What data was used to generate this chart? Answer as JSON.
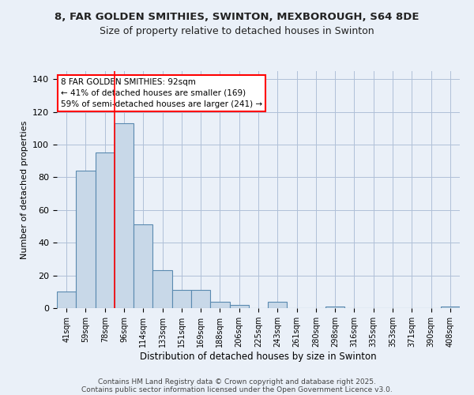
{
  "title_line1": "8, FAR GOLDEN SMITHIES, SWINTON, MEXBOROUGH, S64 8DE",
  "title_line2": "Size of property relative to detached houses in Swinton",
  "xlabel": "Distribution of detached houses by size in Swinton",
  "ylabel": "Number of detached properties",
  "categories": [
    "41sqm",
    "59sqm",
    "78sqm",
    "96sqm",
    "114sqm",
    "133sqm",
    "151sqm",
    "169sqm",
    "188sqm",
    "206sqm",
    "225sqm",
    "243sqm",
    "261sqm",
    "280sqm",
    "298sqm",
    "316sqm",
    "335sqm",
    "353sqm",
    "371sqm",
    "390sqm",
    "408sqm"
  ],
  "values": [
    10,
    84,
    95,
    113,
    51,
    23,
    11,
    11,
    4,
    2,
    0,
    4,
    0,
    0,
    1,
    0,
    0,
    0,
    0,
    0,
    1
  ],
  "bar_color": "#c8d8e8",
  "bar_edge_color": "#5a8ab0",
  "background_color": "#eaf0f8",
  "grid_color": "#b0c0d8",
  "annotation_line1": "8 FAR GOLDEN SMITHIES: 92sqm",
  "annotation_line2": "← 41% of detached houses are smaller (169)",
  "annotation_line3": "59% of semi-detached houses are larger (241) →",
  "red_line_x": 2.5,
  "ylim": [
    0,
    145
  ],
  "yticks": [
    0,
    20,
    40,
    60,
    80,
    100,
    120,
    140
  ],
  "footnote_line1": "Contains HM Land Registry data © Crown copyright and database right 2025.",
  "footnote_line2": "Contains public sector information licensed under the Open Government Licence v3.0."
}
